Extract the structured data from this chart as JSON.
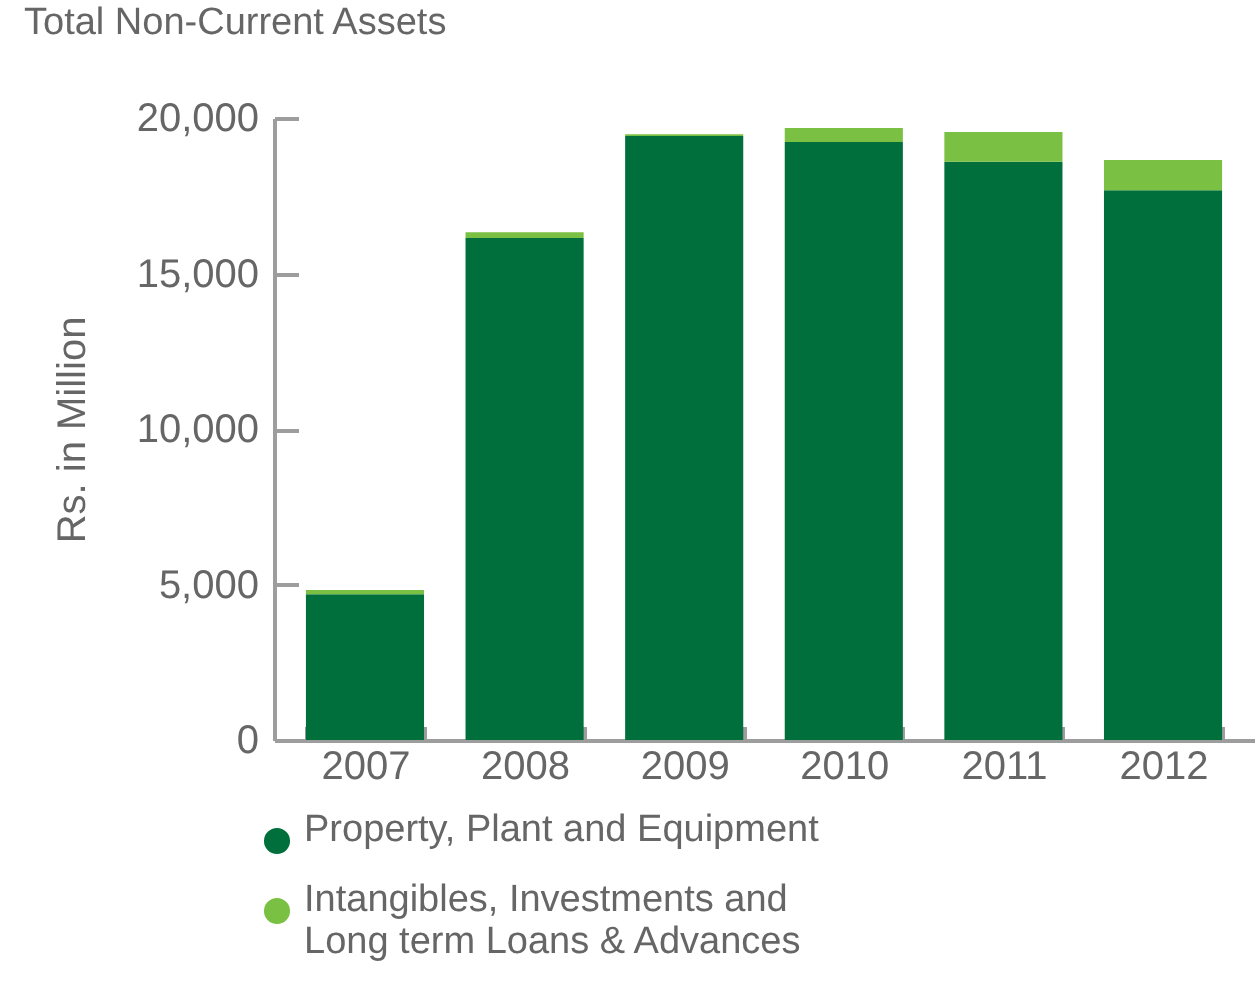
{
  "chart_data": {
    "type": "bar",
    "title": "Total Non-Current Assets",
    "ylabel": "Rs. in Million",
    "categories": [
      "2007",
      "2008",
      "2009",
      "2010",
      "2011",
      "2012"
    ],
    "stacked": true,
    "legend": "bottom",
    "series": [
      {
        "name": "Property, Plant and Equipment",
        "color": "#006f3c",
        "values": [
          4690,
          16140,
          19420,
          19230,
          18590,
          17680
        ]
      },
      {
        "name": "Intangibles, Investments and Long term Loans & Advances",
        "color": "#7ac143",
        "values": [
          130,
          190,
          60,
          450,
          960,
          970
        ]
      }
    ],
    "ylim": [
      0,
      20000
    ],
    "yticks": [
      0,
      {
        "value": 5000,
        "label": "5,000"
      },
      {
        "value": 10000,
        "label": "10,000"
      },
      {
        "value": 15000,
        "label": "15,000"
      },
      {
        "value": 20000,
        "label": "20,000"
      }
    ],
    "grid": false
  }
}
